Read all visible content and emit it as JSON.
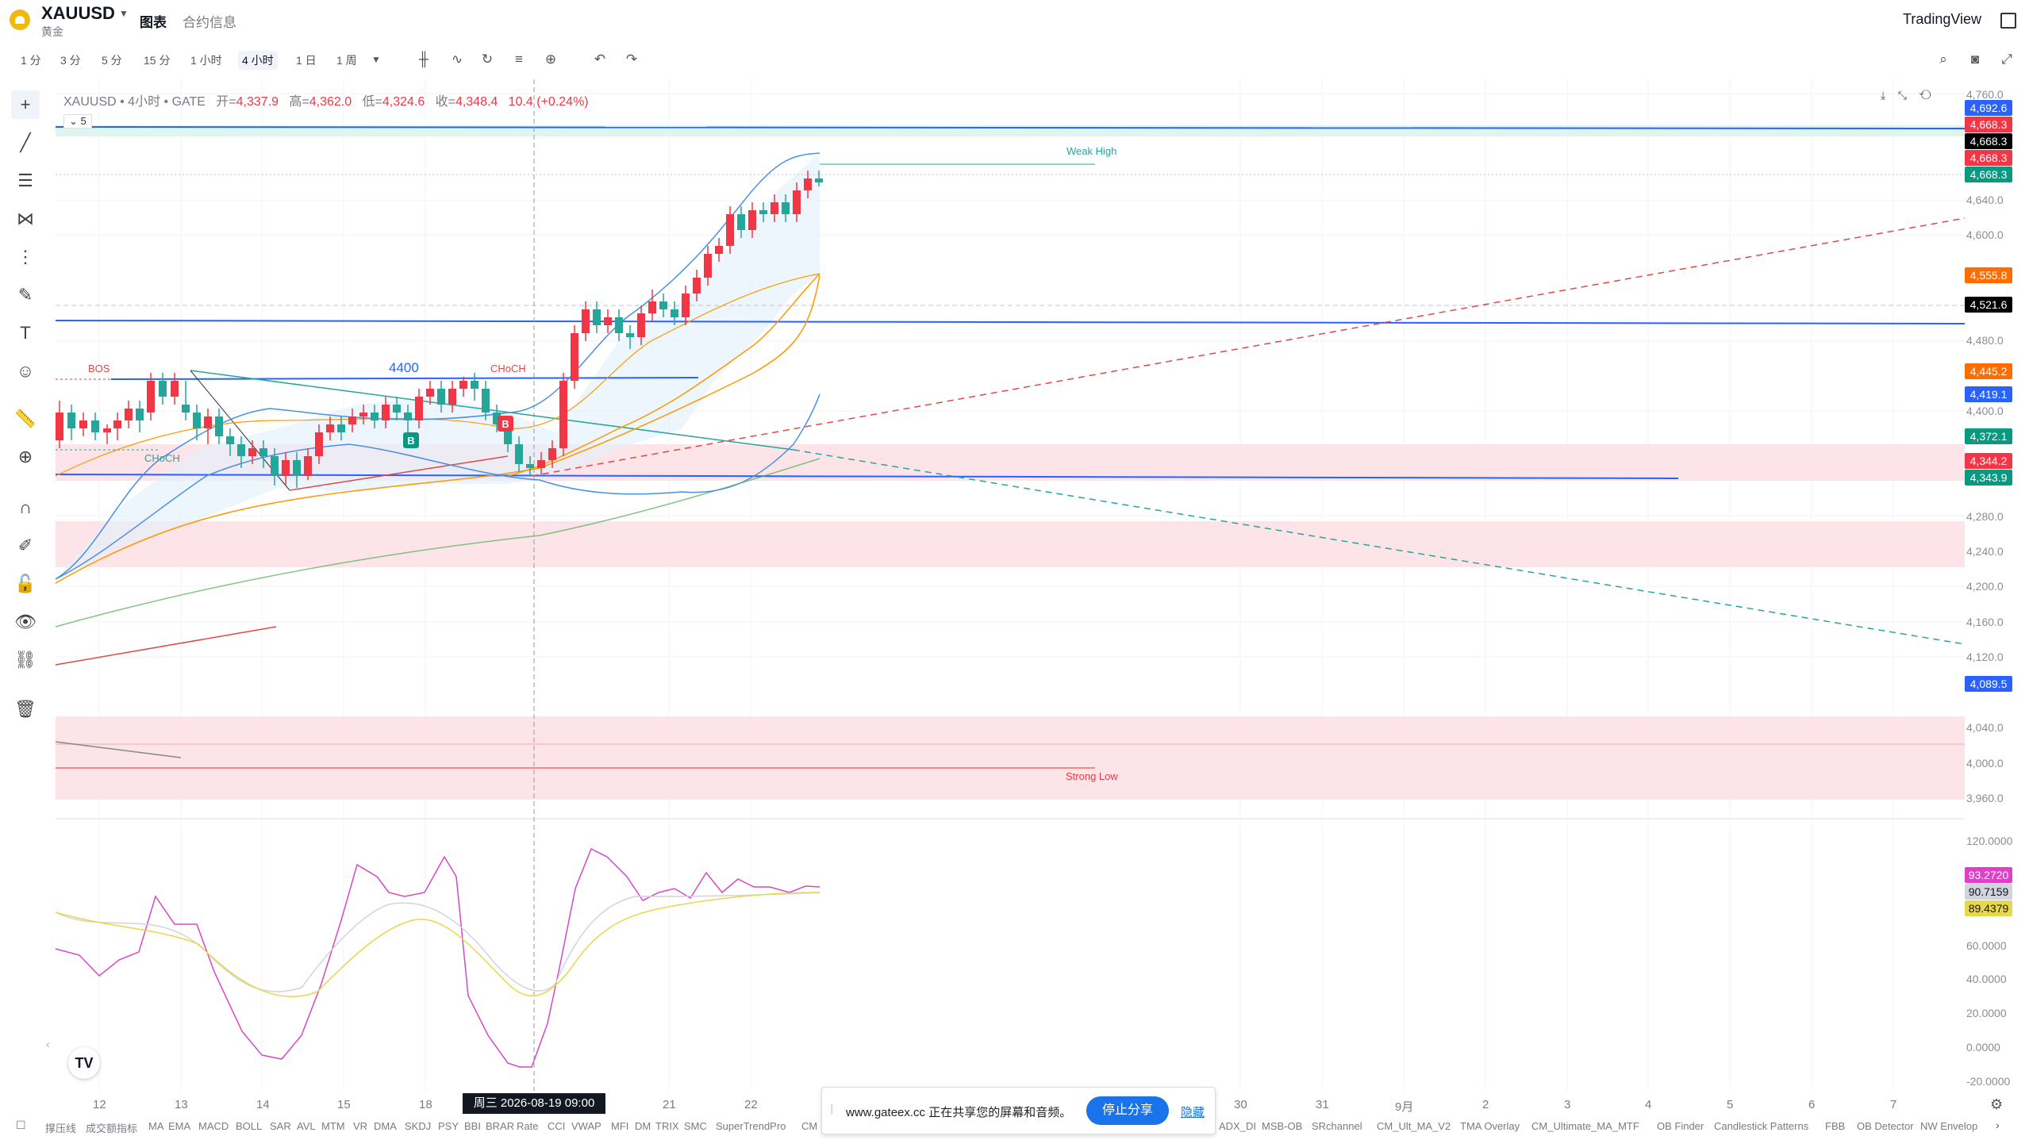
{
  "header": {
    "symbol": "XAUUSD",
    "symbol_subtitle": "黄金",
    "tabs": [
      "图表",
      "合约信息"
    ],
    "brand": "TradingView"
  },
  "toolbar": {
    "timeframes": [
      "1 分",
      "3 分",
      "5 分",
      "15 分",
      "1 小时",
      "4 小时",
      "1 日",
      "1 周"
    ],
    "active_timeframe": "4 小时"
  },
  "legend": {
    "title": "XAUUSD • 4小时 • GATE",
    "open_label": "开=",
    "open": "4,337.9",
    "high_label": "高=",
    "high": "4,362.0",
    "low_label": "低=",
    "low": "4,324.6",
    "close_label": "收=",
    "close": "4,348.4",
    "change": "10.4 (+0.24%)",
    "collapse": "5"
  },
  "annotations": {
    "bos": "BOS",
    "choch_left": "CHoCH",
    "choch_right": "CHoCH",
    "level_4400": "4400",
    "weak_high": "Weak High",
    "strong_low": "Strong Low",
    "buy_marker": "B",
    "buy_marker2": "B"
  },
  "price_axis": {
    "ticks": [
      "4,760.0",
      "4,640.0",
      "4,600.0",
      "4,480.0",
      "4,400.0",
      "4,280.0",
      "4,240.0",
      "4,200.0",
      "4,160.0",
      "4,120.0",
      "4,040.0",
      "4,000.0",
      "3,960.0"
    ],
    "labels": [
      {
        "text": "4,692.6",
        "color": "#2962ff"
      },
      {
        "text": "4,668.3",
        "color": "#f23645"
      },
      {
        "text": "4,668.3",
        "color": "#000000"
      },
      {
        "text": "4,668.3",
        "color": "#f23645"
      },
      {
        "text": "4,668.3",
        "color": "#089981"
      },
      {
        "text": "4,555.8",
        "color": "#ff6d00"
      },
      {
        "text": "4,521.6",
        "color": "#000000"
      },
      {
        "text": "4,445.2",
        "color": "#ff6d00"
      },
      {
        "text": "4,419.1",
        "color": "#2962ff"
      },
      {
        "text": "4,372.1",
        "color": "#089981"
      },
      {
        "text": "4,344.2",
        "color": "#f23645"
      },
      {
        "text": "4,343.9",
        "color": "#089981"
      },
      {
        "text": "4,089.5",
        "color": "#2962ff"
      }
    ]
  },
  "indicator_axis": {
    "ticks": [
      "120.0000",
      "60.0000",
      "40.0000",
      "20.0000",
      "0.0000",
      "-20.0000"
    ],
    "labels": [
      {
        "text": "93.2720",
        "color": "#e040c8"
      },
      {
        "text": "90.7159",
        "color": "#d1d4dc"
      },
      {
        "text": "89.4379",
        "color": "#e6d84a"
      }
    ]
  },
  "time_axis": {
    "ticks": [
      "12",
      "13",
      "14",
      "15",
      "18",
      "21",
      "22",
      "30",
      "31",
      "9月",
      "2",
      "3",
      "4",
      "5",
      "6",
      "7"
    ],
    "crosshair": "周三 2026-08-19   09:00"
  },
  "indicators": [
    "撑压线",
    "成交额指标",
    "MA",
    "EMA",
    "MACD",
    "BOLL",
    "SAR",
    "AVL",
    "MTM",
    "VR",
    "DMA",
    "SKDJ",
    "PSY",
    "BBI",
    "BRAR",
    "Rate",
    "CCI",
    "VWAP",
    "MFI",
    "DM",
    "TRIX",
    "SMC",
    "SuperTrendPro",
    "CM",
    "ADX_DI",
    "MSB-OB",
    "SRchannel",
    "CM_Ult_MA_V2",
    "TMA Overlay",
    "CM_Ultimate_MA_MTF",
    "OB Finder",
    "Candlestick Patterns",
    "FBB",
    "OB Detector",
    "NW Envelop"
  ],
  "share_popup": {
    "text": "www.gateex.cc 正在共享您的屏幕和音频。",
    "stop_label": "停止分享",
    "hide_label": "隐藏"
  },
  "watermark": "TV",
  "colors": {
    "up": "#26a69a",
    "down": "#f23645",
    "accent": "#2962ff"
  }
}
